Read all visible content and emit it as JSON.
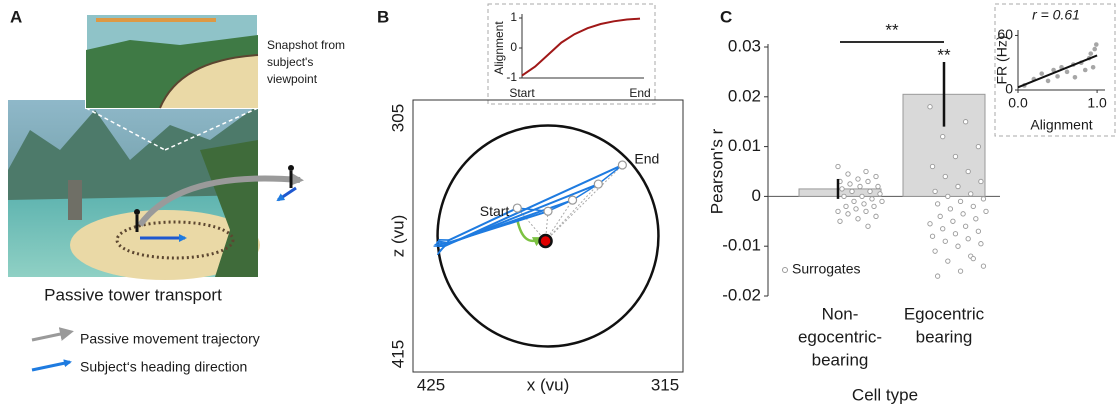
{
  "panel_a": {
    "label": "A",
    "snapshot_caption": [
      "Snapshot from",
      "subject's",
      "viewpoint"
    ],
    "caption": "Passive tower transport",
    "legend": [
      "Passive movement trajectory",
      "Subject‘s heading direction"
    ]
  },
  "panel_b": {
    "label": "B"
  },
  "panel_c": {
    "label": "C"
  },
  "chart_data": [
    {
      "type": "line",
      "ylabel": "Alignment",
      "categories": [
        "Start",
        null,
        null,
        null,
        null,
        null,
        null,
        null,
        null,
        "End"
      ],
      "values": [
        -0.92,
        -0.62,
        -0.22,
        0.18,
        0.46,
        0.66,
        0.8,
        0.89,
        0.95,
        0.98
      ],
      "color": "#a01818",
      "ylim": [
        -1,
        1
      ],
      "yticks": [
        -1,
        0,
        1
      ]
    },
    {
      "type": "trajectory",
      "xlabel": "x (vu)",
      "ylabel": "z (vu)",
      "xlim": [
        425,
        315
      ],
      "ylim": [
        305,
        415
      ],
      "xticks": [
        425,
        315
      ],
      "yticks": [
        305,
        415
      ],
      "x": [
        382.5,
        370,
        360,
        349.5,
        339.7
      ],
      "y": [
        348.7,
        350,
        345.5,
        339,
        331.3
      ],
      "heading_x": [
        411,
        411.5,
        412,
        412.5,
        413
      ],
      "heading_y": [
        362,
        363,
        363.5,
        364,
        364.5
      ],
      "heading_color": "#1e7be0",
      "tower": {
        "x": 371,
        "y": 362
      },
      "tower_color": "#e00000",
      "arena": {
        "x": 370,
        "y": 360,
        "radius": 45
      },
      "start_label": "Start",
      "end_label": "End"
    },
    {
      "type": "bar",
      "ylabel": "Pearson's r",
      "xlabel": "Cell type",
      "categories": [
        [
          "Non-",
          "egocentric-",
          "bearing"
        ],
        [
          "Egocentric",
          "bearing"
        ]
      ],
      "values": [
        0.0015,
        0.0205
      ],
      "errors": [
        0.002,
        0.0065
      ],
      "color": "#d9d9d9",
      "ylim": [
        -0.02,
        0.03
      ],
      "yticks": [
        -0.02,
        -0.01,
        0,
        0.01,
        0.02,
        0.03
      ],
      "surrogate_label": "Surrogates",
      "surrogates": [
        [
          0.006,
          0.005,
          0.0045,
          0.004,
          0.0035,
          0.003,
          0.003,
          0.0025,
          0.002,
          0.002,
          0.0015,
          0.001,
          0.001,
          0.0005,
          0.0,
          0.0,
          -0.0005,
          -0.001,
          -0.001,
          -0.0015,
          -0.002,
          -0.002,
          -0.0025,
          -0.003,
          -0.003,
          -0.0035,
          -0.004,
          -0.0045,
          -0.005,
          -0.006
        ],
        [
          0.018,
          0.015,
          0.012,
          0.01,
          0.008,
          0.006,
          0.005,
          0.004,
          0.003,
          0.002,
          0.001,
          0.0005,
          0.0,
          -0.0005,
          -0.001,
          -0.0015,
          -0.002,
          -0.0025,
          -0.003,
          -0.0035,
          -0.004,
          -0.0045,
          -0.005,
          -0.0055,
          -0.006,
          -0.0065,
          -0.007,
          -0.0075,
          -0.008,
          -0.0085,
          -0.009,
          -0.0095,
          -0.01,
          -0.011,
          -0.012,
          -0.013,
          -0.014,
          -0.015,
          -0.016,
          -0.0125
        ]
      ],
      "pair_annotation": "**",
      "bar_annotation": "**"
    },
    {
      "type": "scatter",
      "annotation": "r = 0.61",
      "xlabel": "Alignment",
      "ylabel": "FR (Hz)",
      "x": [
        0.08,
        0.2,
        0.3,
        0.38,
        0.45,
        0.5,
        0.55,
        0.62,
        0.7,
        0.72,
        0.8,
        0.85,
        0.9,
        0.92,
        0.95,
        0.97,
        0.99
      ],
      "y": [
        5,
        12,
        18,
        10,
        22,
        15,
        25,
        20,
        28,
        14,
        30,
        22,
        35,
        40,
        25,
        45,
        50
      ],
      "fit": {
        "x": [
          0,
          1
        ],
        "y": [
          3,
          38
        ]
      },
      "color": "#a6a6a6",
      "xlim": [
        0,
        1.1
      ],
      "ylim": [
        0,
        66
      ],
      "xticks": [
        {
          "value": 0,
          "label": "0.0"
        },
        {
          "value": 1,
          "label": "1.0"
        }
      ],
      "yticks": [
        0,
        60
      ]
    }
  ]
}
